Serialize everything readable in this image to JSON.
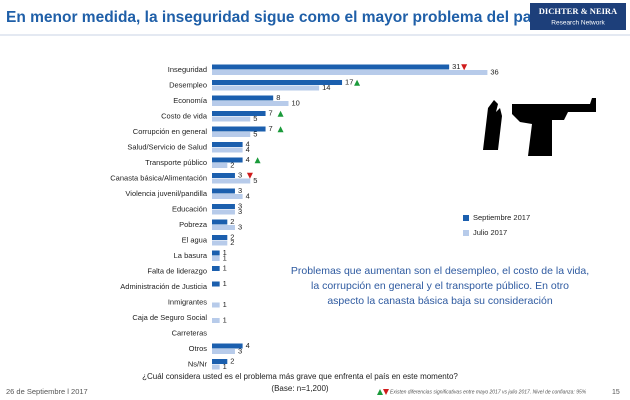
{
  "chart_data": {
    "type": "bar",
    "orientation": "horizontal",
    "title": "En menor medida, la inseguridad sigue como el mayor problema del país.",
    "logo": {
      "name": "DICHTER & NEIRA",
      "subtitle": "Research Network"
    },
    "categories": [
      "Inseguridad",
      "Desempleo",
      "Economía",
      "Costo de vida",
      "Corrupción en general",
      "Salud/Servicio de Salud",
      "Transporte público",
      "Canasta básica/Alimentación",
      "Violencia juvenil/pandilla",
      "Educación",
      "Pobreza",
      "El agua",
      "La basura",
      "Falta de liderazgo",
      "Administración de Justicia",
      "Inmigrantes",
      "Caja de Seguro Social",
      "Carreteras",
      "Otros",
      "Ns/Nr"
    ],
    "series": [
      {
        "name": "Septiembre  2017",
        "color": "#1b5fae",
        "values": [
          31,
          17,
          8,
          7,
          7,
          4,
          4,
          3,
          3,
          3,
          2,
          2,
          1,
          1,
          1,
          null,
          null,
          null,
          4,
          2
        ],
        "significance": [
          "down",
          "up",
          null,
          "up",
          "up",
          null,
          "up",
          "down",
          null,
          null,
          null,
          null,
          null,
          null,
          null,
          null,
          null,
          null,
          null,
          null
        ]
      },
      {
        "name": "Julio 2017",
        "color": "#b7cbea",
        "values": [
          36,
          14,
          10,
          5,
          5,
          4,
          2,
          5,
          4,
          3,
          3,
          2,
          1,
          null,
          null,
          1,
          1,
          null,
          3,
          1
        ]
      }
    ],
    "xlim": [
      0,
      40
    ],
    "annotation": [
      "Problemas que aumentan son el desempleo, el costo de la vida,",
      "la corrupción en general y  el transporte público. En otro",
      "aspecto la canasta básica baja su consideración"
    ],
    "question": "¿Cuál considera usted es el problema más grave que enfrenta el país en este momento?",
    "base": "(Base: n=1,200)",
    "date": "26 de Septiembre l  2017",
    "footnote": "Existen diferencias significativas entre mayo 2017 vs julio 2017. Nivel de confianza: 95%",
    "page": "15"
  }
}
